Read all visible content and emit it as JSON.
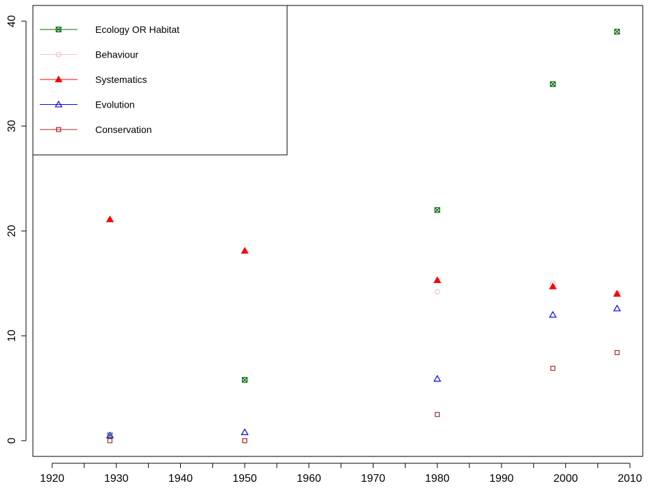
{
  "chart_data": {
    "type": "scatter",
    "title": "",
    "xlabel": "",
    "ylabel": "",
    "xlim": [
      1917,
      2012
    ],
    "ylim": [
      -1.5,
      41.5
    ],
    "xticks": [
      1920,
      1930,
      1940,
      1950,
      1960,
      1970,
      1980,
      1990,
      2000,
      2010
    ],
    "xtick_labels": [
      "1920",
      "1930",
      "1940",
      "1950",
      "1960",
      "1970",
      "1980",
      "1990",
      "2000",
      "2010"
    ],
    "x_minor_ticks": [
      1925,
      1935,
      1945,
      1955,
      1965,
      1975,
      1985,
      1995,
      2005
    ],
    "yticks": [
      0,
      10,
      20,
      30,
      40
    ],
    "ytick_labels": [
      "0",
      "10",
      "20",
      "30",
      "40"
    ],
    "grid": false,
    "legend_position": "top-left",
    "series": [
      {
        "name": "Ecology OR Habitat",
        "color": "#006400",
        "marker": "boxed-x",
        "points": [
          [
            1929,
            0.5
          ],
          [
            1950,
            5.8
          ],
          [
            1980,
            22.0
          ],
          [
            1998,
            34.0
          ],
          [
            2008,
            39.0
          ]
        ]
      },
      {
        "name": "Behaviour",
        "color": "#ffc0cb",
        "marker": "circle-open",
        "points": [
          [
            1929,
            0.5
          ],
          [
            1950,
            0.0
          ],
          [
            1980,
            14.2
          ],
          [
            1998,
            15.0
          ],
          [
            2008,
            14.1
          ]
        ]
      },
      {
        "name": "Systematics",
        "color": "#ff0000",
        "marker": "triangle-filled",
        "points": [
          [
            1929,
            21.1
          ],
          [
            1950,
            18.1
          ],
          [
            1980,
            15.3
          ],
          [
            1998,
            14.7
          ],
          [
            2008,
            14.0
          ]
        ]
      },
      {
        "name": "Evolution",
        "color": "#0000ff",
        "marker": "triangle-open",
        "points": [
          [
            1929,
            0.5
          ],
          [
            1950,
            0.8
          ],
          [
            1980,
            5.9
          ],
          [
            1998,
            12.0
          ],
          [
            2008,
            12.6
          ]
        ]
      },
      {
        "name": "Conservation",
        "color": "#a52a2a",
        "marker": "square-open",
        "points": [
          [
            1929,
            0.0
          ],
          [
            1950,
            0.0
          ],
          [
            1980,
            2.5
          ],
          [
            1998,
            6.9
          ],
          [
            2008,
            8.4
          ]
        ]
      }
    ]
  }
}
